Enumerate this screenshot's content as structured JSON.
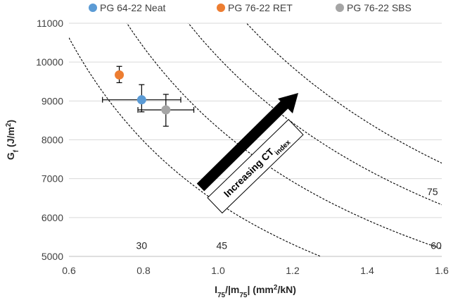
{
  "chart_data": {
    "type": "scatter",
    "title": "",
    "xlabel": {
      "base": "I",
      "sub1": "75",
      "mid": "/|m",
      "sub2": "75",
      "tail": "| (mm",
      "sup": "2",
      "end": "/kN)"
    },
    "ylabel": {
      "base": "G",
      "sub": "f",
      "mid": " (J/m",
      "sup": "2",
      "end": ")"
    },
    "xlim": [
      0.6,
      1.6
    ],
    "ylim": [
      5000,
      11000
    ],
    "x_ticks": [
      "0.6",
      "0.8",
      "1.0",
      "1.2",
      "1.4",
      "1.6"
    ],
    "y_ticks": [
      "5000",
      "6000",
      "7000",
      "8000",
      "9000",
      "10000",
      "11000"
    ],
    "grid": "horizontal",
    "legend_position": "top",
    "series": [
      {
        "name": "PG 64-22 Neat",
        "color": "#5b9bd5",
        "x": 0.795,
        "y": 9030,
        "xerr": [
          0.105,
          0.105
        ],
        "yerr": [
          310,
          390
        ]
      },
      {
        "name": "PG 76-22 RET",
        "color": "#ed7d31",
        "x": 0.735,
        "y": 9670,
        "xerr": [
          0,
          0
        ],
        "yerr": [
          200,
          220
        ]
      },
      {
        "name": "PG 76-22 SBS",
        "color": "#a5a5a5",
        "x": 0.86,
        "y": 8770,
        "xerr": [
          0.075,
          0.075
        ],
        "yerr": [
          420,
          400
        ]
      }
    ],
    "contours": [
      {
        "label": "30",
        "k": 6375,
        "label_at": [
          0.795,
          5190
        ]
      },
      {
        "label": "45",
        "k": 8310,
        "label_at": [
          1.01,
          5190
        ]
      },
      {
        "label": "60",
        "k": 10125,
        "label_at": [
          1.585,
          5190
        ]
      },
      {
        "label": "75",
        "k": 11840,
        "label_at": [
          1.575,
          6580
        ]
      }
    ],
    "annotation": {
      "base": "Increasing CT",
      "sub": "index"
    }
  },
  "colors": {
    "axis": "#bfbfbf",
    "grid": "#d9d9d9",
    "contour": "#000000",
    "arrow": "#000000"
  }
}
